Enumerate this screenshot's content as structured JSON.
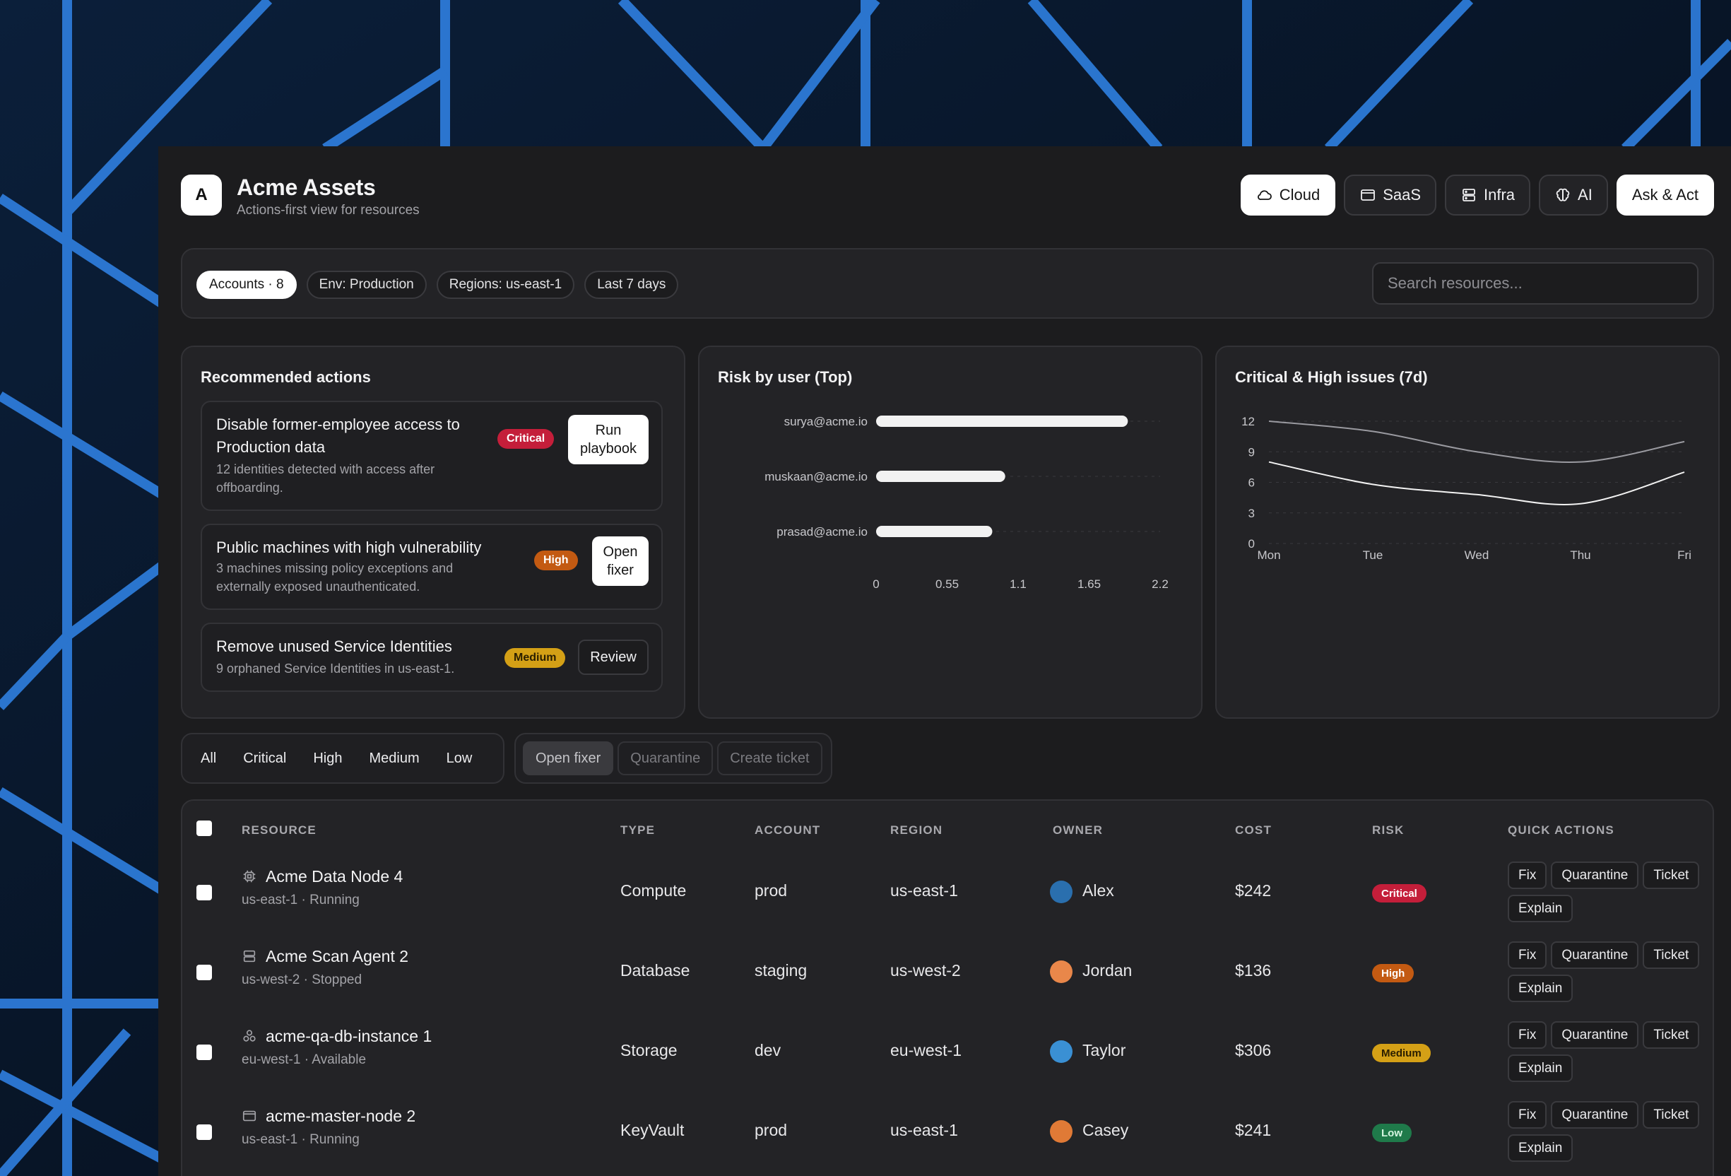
{
  "app": {
    "logo_letter": "A",
    "title": "Acme Assets",
    "subtitle": "Actions-first view for resources"
  },
  "header_buttons": [
    {
      "label": "Cloud",
      "icon": "cloud-icon",
      "active": true
    },
    {
      "label": "SaaS",
      "icon": "window-icon",
      "active": false
    },
    {
      "label": "Infra",
      "icon": "server-icon",
      "active": false
    },
    {
      "label": "AI",
      "icon": "brain-icon",
      "active": false
    },
    {
      "label": "Ask & Act",
      "icon": "",
      "active": true
    }
  ],
  "filters": {
    "chips": [
      "Accounts · 8",
      "Env: Production",
      "Regions: us-east-1",
      "Last 7 days"
    ],
    "search_placeholder": "Search resources..."
  },
  "recommended": {
    "title": "Recommended actions",
    "items": [
      {
        "title_line1": "Disable former-employee access to",
        "title_line2": "Production data",
        "desc_line1": "12 identities detected with access after",
        "desc_line2": "offboarding.",
        "severity": "Critical",
        "action_line1": "Run",
        "action_line2": "playbook"
      },
      {
        "title_line1": "Public machines with high vulnerability",
        "desc_line1": "3 machines missing policy exceptions and",
        "desc_line2": "externally exposed unauthenticated.",
        "severity": "High",
        "action_line1": "Open",
        "action_line2": "fixer"
      },
      {
        "title_line1": "Remove unused Service Identities",
        "desc_line1": "9 orphaned Service Identities in us-east-1.",
        "severity": "Medium",
        "action_line1": "Review"
      }
    ]
  },
  "chart_data": [
    {
      "type": "bar",
      "orientation": "horizontal",
      "title": "Risk by user (Top)",
      "categories": [
        "surya@acme.io",
        "muskaan@acme.io",
        "prasad@acme.io"
      ],
      "values": [
        1.95,
        1.0,
        0.9
      ],
      "xlim": [
        0,
        2.2
      ],
      "xticks": [
        "0",
        "0.55",
        "1.1",
        "1.65",
        "2.2"
      ],
      "grid": true,
      "bar_color": "#f2f2f2"
    },
    {
      "type": "line",
      "title": "Critical & High issues (7d)",
      "x": [
        "Mon",
        "Tue",
        "Wed",
        "Thu",
        "Fri"
      ],
      "series": [
        {
          "values": [
            12,
            11,
            9,
            8,
            10
          ],
          "color": "#9a9aa0"
        },
        {
          "values": [
            8,
            5.8,
            4.8,
            3.9,
            7
          ]
        }
      ],
      "ylim": [
        0,
        12
      ],
      "yticks": [
        "0",
        "3",
        "6",
        "9",
        "12"
      ],
      "grid": true
    }
  ],
  "segments": {
    "severity": [
      "All",
      "Critical",
      "High",
      "Medium",
      "Low"
    ],
    "bulk": [
      "Open fixer",
      "Quarantine",
      "Create ticket"
    ]
  },
  "table": {
    "headers": [
      "RESOURCE",
      "TYPE",
      "ACCOUNT",
      "REGION",
      "OWNER",
      "COST",
      "RISK",
      "QUICK ACTIONS"
    ],
    "quick_actions": [
      "Fix",
      "Quarantine",
      "Ticket",
      "Explain"
    ],
    "rows": [
      {
        "icon": "chip-icon",
        "name": "Acme Data Node 4",
        "sub": "us-east-1 · Running",
        "type": "Compute",
        "account": "prod",
        "region": "us-east-1",
        "owner": "Alex",
        "cost": "$242",
        "risk": "Critical",
        "avatar_color": "#2a6fae"
      },
      {
        "icon": "server-icon",
        "name": "Acme Scan Agent 2",
        "sub": "us-west-2 · Stopped",
        "type": "Database",
        "account": "staging",
        "region": "us-west-2",
        "owner": "Jordan",
        "cost": "$136",
        "risk": "High",
        "avatar_color": "#e9874a"
      },
      {
        "icon": "cluster-icon",
        "name": "acme-qa-db-instance 1",
        "sub": "eu-west-1 · Available",
        "type": "Storage",
        "account": "dev",
        "region": "eu-west-1",
        "owner": "Taylor",
        "cost": "$306",
        "risk": "Medium",
        "avatar_color": "#3a90d4"
      },
      {
        "icon": "window-icon",
        "name": "acme-master-node 2",
        "sub": "us-east-1 · Running",
        "type": "KeyVault",
        "account": "prod",
        "region": "us-east-1",
        "owner": "Casey",
        "cost": "$241",
        "risk": "Low",
        "avatar_color": "#e07a36"
      }
    ]
  },
  "colors": {
    "background": "#06101c",
    "app": "#1c1c1e",
    "panel": "#232326",
    "critical": "#c41e3a",
    "high": "#c35a12",
    "medium": "#d4a016",
    "low": "#1f7a4a"
  }
}
